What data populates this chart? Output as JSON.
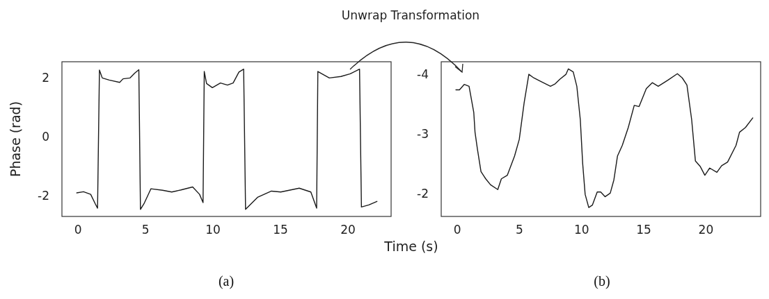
{
  "chart_data": [
    {
      "type": "line",
      "xlabel": "Time (s)",
      "ylabel": "Phase (rad)",
      "annotations": [
        "(a)",
        "Unwrap Transformation"
      ],
      "xlim": [
        -1.2,
        23.2
      ],
      "xticks": [
        0,
        5,
        10,
        15,
        20
      ],
      "ylim": [
        -2.7,
        2.55
      ],
      "yticks": [
        -2,
        0,
        2
      ],
      "grid": false,
      "marker": "none",
      "line_style": "solid",
      "series": [
        {
          "color": "#1a1a1a",
          "x": [
            -0.1,
            0.4,
            0.93,
            1.27,
            1.44,
            1.58,
            1.79,
            2.3,
            3.08,
            3.33,
            3.85,
            4.19,
            4.5,
            4.62,
            4.88,
            5.4,
            6.26,
            6.94,
            7.63,
            8.49,
            9.0,
            9.26,
            9.35,
            9.52,
            9.95,
            10.55,
            11.07,
            11.49,
            11.92,
            12.27,
            12.41,
            13.3,
            14.33,
            15.02,
            16.39,
            17.25,
            17.68,
            17.77,
            18.62,
            19.48,
            20.17,
            20.86,
            21.0,
            21.55,
            22.15
          ],
          "values": [
            -1.9,
            -1.86,
            -1.95,
            -2.27,
            -2.42,
            2.27,
            2.0,
            1.93,
            1.85,
            1.97,
            2.0,
            2.16,
            2.28,
            -2.46,
            -2.27,
            -1.76,
            -1.81,
            -1.87,
            -1.8,
            -1.7,
            -1.95,
            -2.23,
            2.22,
            1.81,
            1.67,
            1.83,
            1.76,
            1.83,
            2.2,
            2.3,
            -2.46,
            -2.05,
            -1.84,
            -1.87,
            -1.74,
            -1.87,
            -2.42,
            2.22,
            2.0,
            2.05,
            2.14,
            2.3,
            -2.38,
            -2.31,
            -2.19
          ]
        }
      ]
    },
    {
      "type": "line",
      "annotations": [
        "(b)"
      ],
      "xlim": [
        -1.3,
        24.4
      ],
      "xticks": [
        0,
        5,
        10,
        15,
        20
      ],
      "ylim": [
        -1.62,
        -4.21
      ],
      "yticks": [
        {
          "value": -4,
          "label": "-4"
        },
        {
          "value": -3,
          "label": "-3"
        },
        {
          "value": -2,
          "label": "-2"
        }
      ],
      "grid": false,
      "marker": "none",
      "line_style": "solid",
      "series": [
        {
          "color": "#1a1a1a",
          "x": [
            -0.12,
            0.17,
            0.55,
            0.94,
            1.32,
            1.42,
            1.61,
            1.9,
            2.28,
            2.67,
            3.25,
            3.54,
            4.02,
            4.6,
            4.98,
            5.37,
            5.75,
            6.14,
            6.71,
            7.49,
            7.87,
            8.26,
            8.74,
            8.93,
            9.32,
            9.61,
            9.89,
            10.08,
            10.28,
            10.57,
            10.86,
            11.25,
            11.53,
            11.88,
            12.3,
            12.59,
            12.88,
            13.27,
            13.75,
            14.23,
            14.62,
            15.2,
            15.68,
            16.16,
            16.93,
            17.7,
            18.09,
            18.47,
            18.85,
            19.15,
            19.53,
            19.91,
            20.3,
            20.88,
            21.26,
            21.74,
            22.42,
            22.7,
            23.18,
            23.77
          ],
          "values": [
            -3.74,
            -3.74,
            -3.83,
            -3.8,
            -3.36,
            -3.03,
            -2.75,
            -2.37,
            -2.25,
            -2.15,
            -2.07,
            -2.25,
            -2.31,
            -2.63,
            -2.91,
            -3.52,
            -4.0,
            -3.94,
            -3.88,
            -3.8,
            -3.84,
            -3.92,
            -4.0,
            -4.09,
            -4.04,
            -3.8,
            -3.24,
            -2.51,
            -1.99,
            -1.77,
            -1.81,
            -2.03,
            -2.03,
            -1.95,
            -2.01,
            -2.23,
            -2.63,
            -2.81,
            -3.11,
            -3.48,
            -3.46,
            -3.76,
            -3.86,
            -3.8,
            -3.9,
            -4.01,
            -3.94,
            -3.82,
            -3.24,
            -2.55,
            -2.46,
            -2.31,
            -2.43,
            -2.36,
            -2.47,
            -2.53,
            -2.81,
            -3.03,
            -3.11,
            -3.27
          ]
        }
      ]
    }
  ]
}
